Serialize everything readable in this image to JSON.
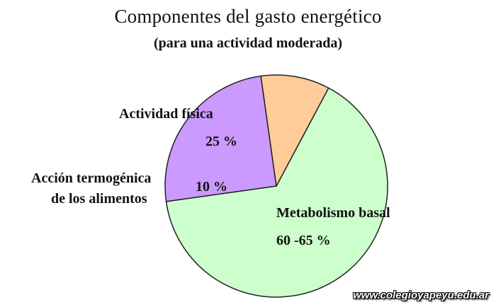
{
  "chart_data": {
    "type": "pie",
    "title": "Componentes del gasto energético",
    "subtitle": "(para una actividad moderada)",
    "slices": [
      {
        "label": "Metabolismo basal",
        "value": 65,
        "value_label": "60 -65 %",
        "color": "#ccffcc"
      },
      {
        "label": "Actividad física",
        "value": 25,
        "value_label": "25 %",
        "color": "#cc99ff"
      },
      {
        "label_lines": [
          "Acción termogénica",
          "de los alimentos"
        ],
        "value": 10,
        "value_label": "10 %",
        "color": "#ffcc99"
      }
    ],
    "legend": "none",
    "grid": false
  },
  "watermark": "www.colegioyapeyu.edu.ar"
}
